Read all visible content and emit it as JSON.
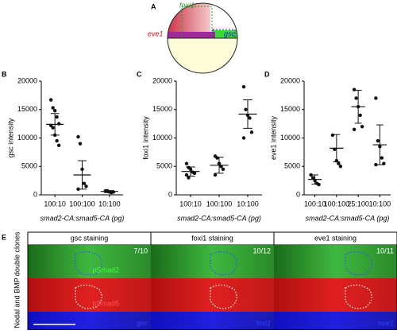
{
  "panel_a": {
    "letter": "A",
    "labels": {
      "foxi1": "foxi1",
      "eve1": "eve1",
      "gsc": "gsc"
    }
  },
  "chart_data": [
    {
      "type": "strip",
      "panel": "B",
      "ylabel": "gsc intensity",
      "xlabel": "smad2-CA:smad5-CA (pg)",
      "categories": [
        "100:10",
        "100:100",
        "10:100"
      ],
      "points": [
        [
          16700,
          15300,
          14800,
          13700,
          12500,
          12200,
          11800,
          10500,
          9500,
          8700
        ],
        [
          10200,
          9000,
          4500,
          2000,
          1500,
          1000
        ],
        [
          700,
          600,
          500,
          400,
          500,
          600,
          700
        ]
      ],
      "mean": [
        12400,
        3500,
        600
      ],
      "sd": [
        1900,
        2500,
        150
      ],
      "ylim": [
        0,
        20000
      ],
      "yticks": [
        0,
        5000,
        10000,
        15000,
        20000
      ],
      "color": "#111111"
    },
    {
      "type": "strip",
      "panel": "C",
      "ylabel": "foxi1 intensity",
      "xlabel": "smad2-CA:smad5-CA (pg)",
      "categories": [
        "100:10",
        "100:100",
        "10:100"
      ],
      "points": [
        [
          5500,
          4800,
          4500,
          4000,
          3800,
          3500,
          3000
        ],
        [
          6800,
          6500,
          5500,
          5000,
          4500,
          3500
        ],
        [
          19000,
          15000,
          14000,
          13500,
          11000,
          10000
        ]
      ],
      "mean": [
        4100,
        5200,
        14200
      ],
      "sd": [
        800,
        1400,
        2500
      ],
      "ylim": [
        0,
        20000
      ],
      "yticks": [
        0,
        5000,
        10000,
        15000,
        20000
      ],
      "color": "#111111"
    },
    {
      "type": "strip",
      "panel": "D",
      "ylabel": "eve1 intensity",
      "xlabel": "smad2-CA:smad5-CA (pg)",
      "categories": [
        "100:10",
        "100:100",
        "25:100",
        "10:100"
      ],
      "points": [
        [
          3500,
          3000,
          2500,
          2000,
          1800
        ],
        [
          10500,
          8000,
          6000,
          5500,
          5000
        ],
        [
          18500,
          17000,
          15500,
          14000,
          12000,
          11500
        ],
        [
          17000,
          9500,
          8500,
          6500,
          5500,
          5300
        ]
      ],
      "mean": [
        2700,
        8200,
        15500,
        8800
      ],
      "sd": [
        800,
        2400,
        2900,
        3500
      ],
      "ylim": [
        0,
        20000
      ],
      "yticks": [
        0,
        5000,
        10000,
        15000,
        20000
      ],
      "color": "#111111"
    }
  ],
  "panel_e": {
    "letter": "E",
    "side_label": "Nodal and BMP double clones",
    "columns": [
      "gsc staining",
      "foxi1 staining",
      "eve1 staining"
    ],
    "ratios": [
      "7/10",
      "10/12",
      "10/11"
    ],
    "channels": [
      "pSmad2",
      "pSmad5"
    ],
    "genes": [
      "gsc",
      "foxi1",
      "eve1"
    ]
  }
}
